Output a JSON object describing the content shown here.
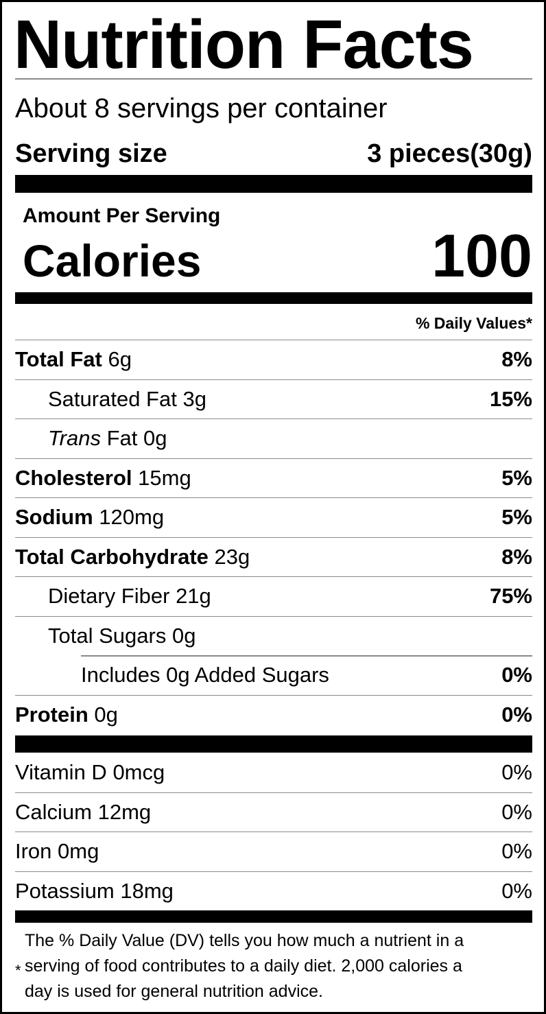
{
  "title": "Nutrition Facts",
  "servings_per_container": "About 8 servings per container",
  "serving_size": {
    "label": "Serving size",
    "value": "3 pieces(30g)"
  },
  "amount_per_serving": "Amount Per Serving",
  "calories": {
    "label": "Calories",
    "value": "100"
  },
  "daily_values_header": "% Daily Values*",
  "nutrients": [
    {
      "name": "Total Fat",
      "amount": "6g",
      "dv": "8%",
      "bold": true,
      "indent": 0
    },
    {
      "name": "Saturated Fat",
      "amount": "3g",
      "dv": "15%",
      "bold": false,
      "indent": 1
    },
    {
      "name": "Trans",
      "name_suffix": "Fat",
      "amount": "0g",
      "dv": "",
      "bold": false,
      "indent": 1,
      "italic_prefix": true
    },
    {
      "name": "Cholesterol",
      "amount": "15mg",
      "dv": "5%",
      "bold": true,
      "indent": 0
    },
    {
      "name": "Sodium",
      "amount": "120mg",
      "dv": "5%",
      "bold": true,
      "indent": 0
    },
    {
      "name": "Total Carbohydrate",
      "amount": "23g",
      "dv": "8%",
      "bold": true,
      "indent": 0
    },
    {
      "name": "Dietary Fiber",
      "amount": "21g",
      "dv": "75%",
      "bold": false,
      "indent": 1
    },
    {
      "name": "Total Sugars",
      "amount": "0g",
      "dv": "",
      "bold": false,
      "indent": 1
    },
    {
      "name": "Includes 0g Added Sugars",
      "amount": "",
      "dv": "0%",
      "bold": false,
      "indent": 2
    },
    {
      "name": "Protein",
      "amount": "0g",
      "dv": "0%",
      "bold": true,
      "indent": 0
    }
  ],
  "vitamins": [
    {
      "name": "Vitamin D",
      "amount": "0mcg",
      "dv": "0%"
    },
    {
      "name": "Calcium",
      "amount": "12mg",
      "dv": "0%"
    },
    {
      "name": "Iron",
      "amount": "0mg",
      "dv": "0%"
    },
    {
      "name": "Potassium",
      "amount": "18mg",
      "dv": "0%"
    }
  ],
  "footnote": {
    "asterisk": "*",
    "lines": [
      "The % Daily Value (DV) tells you how much a nutrient in a",
      "serving of food contributes to a daily diet. 2,000 calories a",
      "day is used for general nutrition advice."
    ]
  }
}
